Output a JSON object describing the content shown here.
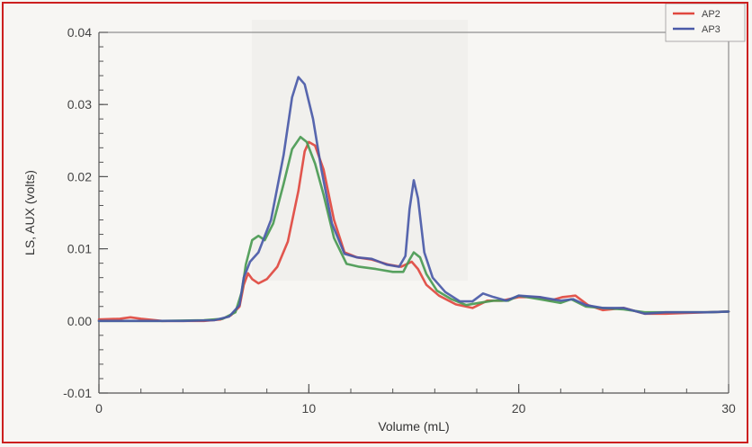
{
  "chart_data": {
    "type": "line",
    "title": "",
    "xlabel": "Volume (mL)",
    "ylabel": "LS, AUX (volts)",
    "xlim": [
      0,
      30
    ],
    "ylim": [
      -0.01,
      0.04
    ],
    "x_ticks": [
      0,
      10,
      20,
      30
    ],
    "x_tick_labels": [
      "0",
      "10",
      "20",
      "30"
    ],
    "y_ticks": [
      -0.01,
      0.0,
      0.01,
      0.02,
      0.03,
      0.04
    ],
    "y_tick_labels": [
      "-0.01",
      "0.00",
      "0.01",
      "0.02",
      "0.03",
      "0.04"
    ],
    "grid": false,
    "legend_position": "top-right",
    "series": [
      {
        "name": "AP2",
        "color": "#e0483f",
        "points": [
          [
            0,
            0.0002
          ],
          [
            1,
            0.0003
          ],
          [
            1.5,
            0.0005
          ],
          [
            2,
            0.0003
          ],
          [
            3,
            0.0
          ],
          [
            4,
            0.0
          ],
          [
            5,
            0.0
          ],
          [
            5.8,
            0.0002
          ],
          [
            6.3,
            0.0008
          ],
          [
            6.7,
            0.002
          ],
          [
            6.9,
            0.005
          ],
          [
            7.1,
            0.0066
          ],
          [
            7.3,
            0.0058
          ],
          [
            7.6,
            0.0052
          ],
          [
            8,
            0.0058
          ],
          [
            8.5,
            0.0075
          ],
          [
            9,
            0.011
          ],
          [
            9.5,
            0.018
          ],
          [
            9.8,
            0.0235
          ],
          [
            10,
            0.0248
          ],
          [
            10.3,
            0.0243
          ],
          [
            10.7,
            0.021
          ],
          [
            11.2,
            0.014
          ],
          [
            11.7,
            0.0095
          ],
          [
            12.3,
            0.0088
          ],
          [
            13,
            0.0085
          ],
          [
            13.8,
            0.0078
          ],
          [
            14.4,
            0.0075
          ],
          [
            14.9,
            0.0082
          ],
          [
            15.2,
            0.0072
          ],
          [
            15.6,
            0.005
          ],
          [
            16.2,
            0.0035
          ],
          [
            17,
            0.0023
          ],
          [
            17.8,
            0.0018
          ],
          [
            18.5,
            0.0028
          ],
          [
            19.2,
            0.0028
          ],
          [
            20,
            0.0033
          ],
          [
            21,
            0.0033
          ],
          [
            21.5,
            0.0028
          ],
          [
            22.1,
            0.0033
          ],
          [
            22.7,
            0.0035
          ],
          [
            23.3,
            0.0022
          ],
          [
            24,
            0.0015
          ],
          [
            25,
            0.0018
          ],
          [
            26,
            0.001
          ],
          [
            27,
            0.001
          ],
          [
            28,
            0.0011
          ],
          [
            29,
            0.0012
          ],
          [
            30,
            0.0013
          ]
        ]
      },
      {
        "name": "AP3",
        "color": "#4a5aa8",
        "points": [
          [
            0,
            0.0
          ],
          [
            2,
            0.0
          ],
          [
            4,
            0.0
          ],
          [
            5.5,
            0.0001
          ],
          [
            6.2,
            0.0006
          ],
          [
            6.7,
            0.0022
          ],
          [
            6.9,
            0.006
          ],
          [
            7.2,
            0.0082
          ],
          [
            7.6,
            0.0095
          ],
          [
            8.2,
            0.014
          ],
          [
            8.8,
            0.023
          ],
          [
            9.2,
            0.031
          ],
          [
            9.5,
            0.0338
          ],
          [
            9.8,
            0.0328
          ],
          [
            10.2,
            0.028
          ],
          [
            10.6,
            0.021
          ],
          [
            11.1,
            0.0135
          ],
          [
            11.7,
            0.0093
          ],
          [
            12.3,
            0.0088
          ],
          [
            13,
            0.0086
          ],
          [
            13.7,
            0.0078
          ],
          [
            14.3,
            0.0075
          ],
          [
            14.6,
            0.009
          ],
          [
            14.8,
            0.0155
          ],
          [
            15,
            0.0195
          ],
          [
            15.2,
            0.017
          ],
          [
            15.5,
            0.0095
          ],
          [
            15.9,
            0.006
          ],
          [
            16.5,
            0.004
          ],
          [
            17.2,
            0.0027
          ],
          [
            17.8,
            0.0027
          ],
          [
            18.3,
            0.0038
          ],
          [
            18.8,
            0.0033
          ],
          [
            19.4,
            0.0028
          ],
          [
            20,
            0.0035
          ],
          [
            21,
            0.0033
          ],
          [
            22,
            0.0028
          ],
          [
            22.6,
            0.003
          ],
          [
            23.2,
            0.0022
          ],
          [
            24,
            0.0018
          ],
          [
            25,
            0.0018
          ],
          [
            26,
            0.001
          ],
          [
            27,
            0.0012
          ],
          [
            28,
            0.0012
          ],
          [
            29,
            0.0012
          ],
          [
            30,
            0.0013
          ]
        ]
      },
      {
        "points": [
          [
            0,
            0.0
          ],
          [
            3,
            0.0
          ],
          [
            5,
            0.0001
          ],
          [
            5.9,
            0.0003
          ],
          [
            6.5,
            0.0012
          ],
          [
            6.8,
            0.004
          ],
          [
            7.0,
            0.0078
          ],
          [
            7.3,
            0.0112
          ],
          [
            7.6,
            0.0118
          ],
          [
            7.9,
            0.0112
          ],
          [
            8.3,
            0.0135
          ],
          [
            8.8,
            0.019
          ],
          [
            9.2,
            0.0238
          ],
          [
            9.6,
            0.0255
          ],
          [
            9.9,
            0.0248
          ],
          [
            10.3,
            0.0218
          ],
          [
            10.7,
            0.0175
          ],
          [
            11.2,
            0.0115
          ],
          [
            11.8,
            0.0079
          ],
          [
            12.4,
            0.0075
          ],
          [
            13.2,
            0.0072
          ],
          [
            14,
            0.0068
          ],
          [
            14.5,
            0.0068
          ],
          [
            14.8,
            0.0085
          ],
          [
            15,
            0.0095
          ],
          [
            15.3,
            0.0088
          ],
          [
            15.6,
            0.0065
          ],
          [
            16.1,
            0.0042
          ],
          [
            16.8,
            0.003
          ],
          [
            17.5,
            0.0022
          ],
          [
            18.1,
            0.0025
          ],
          [
            18.8,
            0.0028
          ],
          [
            19.5,
            0.0028
          ],
          [
            20,
            0.0035
          ],
          [
            21,
            0.003
          ],
          [
            22,
            0.0025
          ],
          [
            22.5,
            0.003
          ],
          [
            23.2,
            0.002
          ],
          [
            24,
            0.0018
          ],
          [
            25,
            0.0016
          ],
          [
            26,
            0.0012
          ],
          [
            27,
            0.0012
          ],
          [
            28,
            0.0012
          ],
          [
            29,
            0.0012
          ],
          [
            30,
            0.0013
          ]
        ],
        "color": "#4a9a52"
      }
    ]
  }
}
